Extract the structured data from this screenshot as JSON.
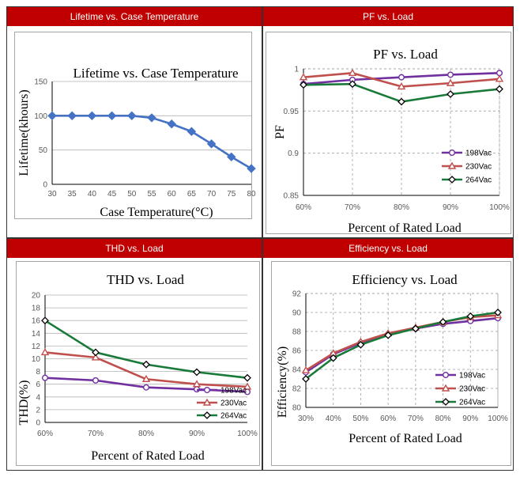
{
  "headers": {
    "lifetime": "Lifetime vs. Case Temperature",
    "pf": "PF vs. Load",
    "thd": "THD vs. Load",
    "eff": "Efficiency vs. Load"
  },
  "colors": {
    "header_bg": "#c00000",
    "blue": "#4472c4",
    "purple": "#7030a0",
    "red": "#c0504d",
    "green": "#1a7a3a"
  },
  "chart_data": [
    {
      "id": "lifetime",
      "type": "line",
      "title": "Lifetime vs. Case Temperature",
      "xlabel": "Case Temperature(°C)",
      "ylabel": "Lifetime(khours)",
      "x": [
        30,
        35,
        40,
        45,
        50,
        55,
        60,
        65,
        70,
        75,
        80
      ],
      "x_ticks": [
        "30",
        "35",
        "40",
        "45",
        "50",
        "55",
        "60",
        "65",
        "70",
        "75",
        "80"
      ],
      "ylim": [
        0,
        150
      ],
      "y_ticks": [
        0,
        50,
        100,
        150
      ],
      "series": [
        {
          "name": "Lifetime",
          "color": "#4472c4",
          "marker": "diamond",
          "values": [
            100,
            100,
            100,
            100,
            100,
            97,
            88,
            77,
            59,
            40,
            23
          ]
        }
      ]
    },
    {
      "id": "pf",
      "type": "line",
      "title": "PF vs. Load",
      "xlabel": "Percent of Rated Load",
      "ylabel": "PF",
      "categories": [
        "60%",
        "70%",
        "80%",
        "90%",
        "100%"
      ],
      "ylim": [
        0.85,
        1
      ],
      "y_ticks": [
        "0.85",
        "0.9",
        "0.95",
        "1"
      ],
      "legend": "bottom-right",
      "series": [
        {
          "name": "198Vac",
          "color": "#7030a0",
          "marker": "circle",
          "values": [
            0.982,
            0.987,
            0.99,
            0.993,
            0.995
          ]
        },
        {
          "name": "230Vac",
          "color": "#c0504d",
          "marker": "triangle",
          "values": [
            0.99,
            0.995,
            0.979,
            0.983,
            0.988
          ]
        },
        {
          "name": "264Vac",
          "color": "#1a7a3a",
          "marker": "diamond",
          "values": [
            0.981,
            0.982,
            0.961,
            0.97,
            0.976
          ]
        }
      ]
    },
    {
      "id": "thd",
      "type": "line",
      "title": "THD vs. Load",
      "xlabel": "Percent of Rated Load",
      "ylabel": "THD(%)",
      "categories": [
        "60%",
        "70%",
        "80%",
        "90%",
        "100%"
      ],
      "ylim": [
        0,
        20
      ],
      "y_ticks": [
        "0",
        "2",
        "4",
        "6",
        "8",
        "10",
        "12",
        "14",
        "16",
        "18",
        "20"
      ],
      "legend": "bottom-right",
      "series": [
        {
          "name": "198Vac",
          "color": "#7030a0",
          "marker": "circle",
          "values": [
            7.0,
            6.6,
            5.5,
            5.2,
            4.8
          ]
        },
        {
          "name": "230Vac",
          "color": "#c0504d",
          "marker": "triangle",
          "values": [
            11.0,
            10.2,
            6.8,
            6.0,
            5.6
          ]
        },
        {
          "name": "264Vac",
          "color": "#1a7a3a",
          "marker": "diamond",
          "values": [
            16.0,
            11.0,
            9.1,
            7.9,
            7.0
          ]
        }
      ]
    },
    {
      "id": "eff",
      "type": "line",
      "title": "Efficiency vs. Load",
      "xlabel": "Percent of Rated Load",
      "ylabel": "Efficiency(%)",
      "categories": [
        "30%",
        "40%",
        "50%",
        "60%",
        "70%",
        "80%",
        "90%",
        "100%"
      ],
      "ylim": [
        80,
        92
      ],
      "y_ticks": [
        "80",
        "82",
        "84",
        "86",
        "88",
        "90",
        "92"
      ],
      "legend": "bottom-right",
      "series": [
        {
          "name": "198Vac",
          "color": "#7030a0",
          "marker": "circle",
          "values": [
            83.7,
            85.6,
            86.8,
            87.7,
            88.3,
            88.8,
            89.1,
            89.4
          ]
        },
        {
          "name": "230Vac",
          "color": "#c0504d",
          "marker": "triangle",
          "values": [
            83.9,
            85.7,
            86.9,
            87.8,
            88.4,
            89.0,
            89.5,
            89.7
          ]
        },
        {
          "name": "264Vac",
          "color": "#1a7a3a",
          "marker": "diamond",
          "values": [
            83.0,
            85.2,
            86.6,
            87.6,
            88.3,
            89.0,
            89.6,
            90.0
          ]
        }
      ]
    }
  ]
}
